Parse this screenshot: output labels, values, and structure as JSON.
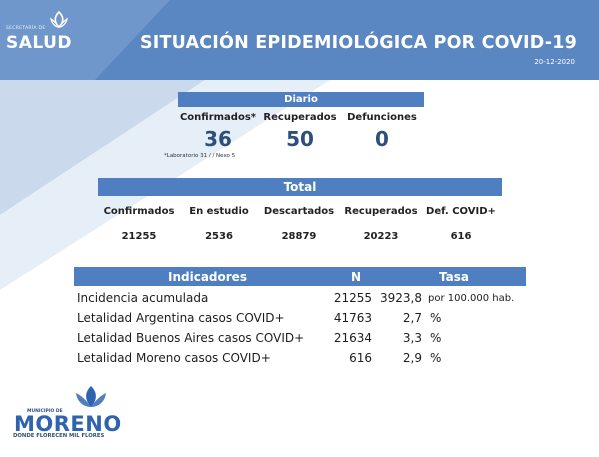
{
  "header": {
    "org_small": "SECRETARÍA DE",
    "org_big": "SALUD",
    "title": "SITUACIÓN EPIDEMIOLÓGICA POR COVID-19",
    "date": "20-12-2020",
    "colors": {
      "banner": "#5a86c1",
      "accent": "#4f7fc0",
      "value": "#2e4f7e"
    }
  },
  "diario": {
    "heading": "Diario",
    "items": [
      {
        "label": "Confirmados*",
        "value": "36"
      },
      {
        "label": "Recuperados",
        "value": "50"
      },
      {
        "label": "Defunciones",
        "value": "0"
      }
    ],
    "note": "*Laboratorio 31 / / Nexo 5"
  },
  "total": {
    "heading": "Total",
    "columns": [
      {
        "label": "Confirmados",
        "value": "21255"
      },
      {
        "label": "En estudio",
        "value": "2536"
      },
      {
        "label": "Descartados",
        "value": "28879"
      },
      {
        "label": "Recuperados",
        "value": "20223"
      },
      {
        "label": "Def. COVID+",
        "value": "616"
      }
    ]
  },
  "indicadores": {
    "headers": {
      "name": "Indicadores",
      "n": "N",
      "rate": "Tasa"
    },
    "rows": [
      {
        "label": "Incidencia acumulada",
        "n": "21255",
        "rate": "3923,8",
        "unit": "por 100.000 hab."
      },
      {
        "label": "Letalidad Argentina casos COVID+",
        "n": "41763",
        "rate": "2,7",
        "unit": "%"
      },
      {
        "label": "Letalidad Buenos Aires casos COVID+",
        "n": "21634",
        "rate": "3,3",
        "unit": "%"
      },
      {
        "label": "Letalidad Moreno casos COVID+",
        "n": "616",
        "rate": "2,9",
        "unit": "%"
      }
    ]
  },
  "footer": {
    "org_small": "MUNICIPIO DE",
    "org_big": "MORENO",
    "tagline": "DONDE FLORECEN MIL FLORES"
  }
}
